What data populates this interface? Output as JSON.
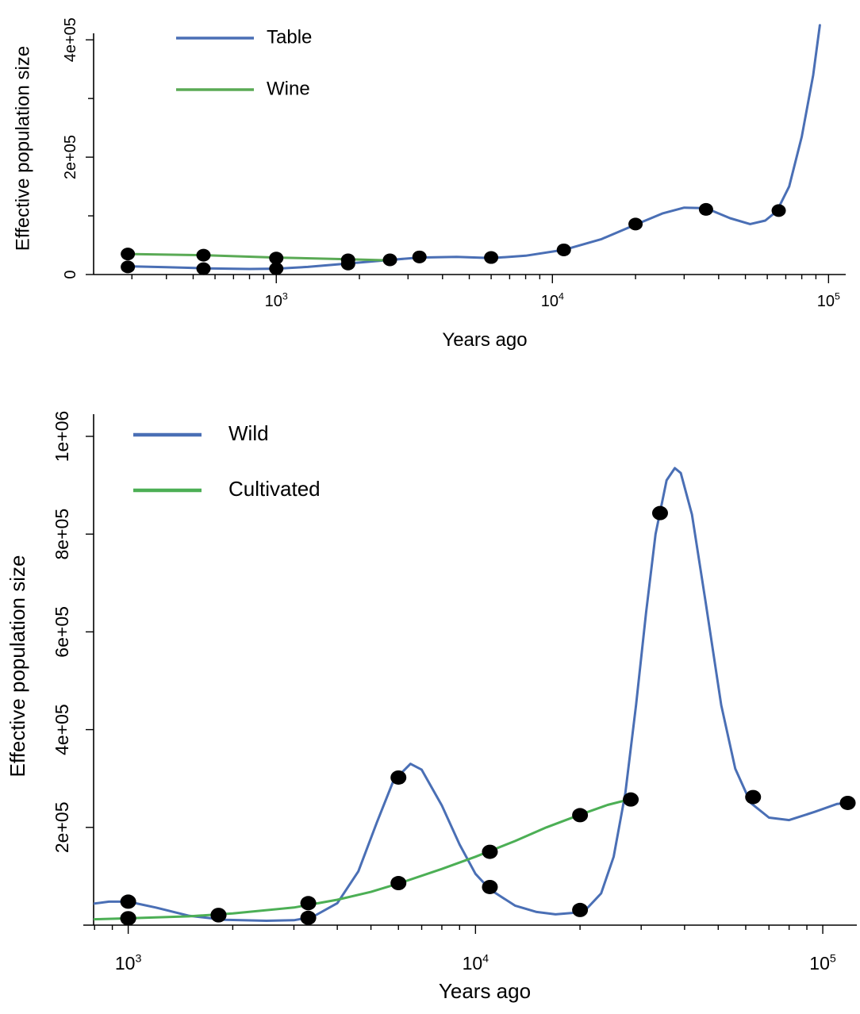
{
  "chart_data": [
    {
      "type": "line",
      "xscale": "log",
      "xlim": [
        218,
        130000
      ],
      "ylim": [
        0,
        430000
      ],
      "xlabel": "Years ago",
      "ylabel": "Effective population size",
      "y_ticks": [
        0,
        200000,
        400000
      ],
      "y_tick_labels": [
        "0",
        "2e+05",
        "4e+05"
      ],
      "y_minor_ticks": [
        100000,
        300000
      ],
      "x_ticks": [
        1000,
        10000,
        100000
      ],
      "x_tick_labels": [
        {
          "base": "10",
          "exp": "3"
        },
        {
          "base": "10",
          "exp": "4"
        },
        {
          "base": "10",
          "exp": "5"
        }
      ],
      "legend_position": "top-left",
      "series": [
        {
          "name": "Table",
          "color": "#4a6fb5",
          "curve": [
            [
              290,
              14000
            ],
            [
              400,
              12500
            ],
            [
              560,
              10500
            ],
            [
              800,
              9500
            ],
            [
              1000,
              10000
            ],
            [
              1300,
              13000
            ],
            [
              1850,
              19000
            ],
            [
              2600,
              25000
            ],
            [
              3300,
              29000
            ],
            [
              4500,
              30000
            ],
            [
              6000,
              28000
            ],
            [
              8000,
              32000
            ],
            [
              11000,
              42000
            ],
            [
              15000,
              60000
            ],
            [
              20000,
              85000
            ],
            [
              25000,
              104000
            ],
            [
              30000,
              114000
            ],
            [
              36000,
              113000
            ],
            [
              44000,
              96000
            ],
            [
              52000,
              86000
            ],
            [
              59000,
              92000
            ],
            [
              65000,
              108000
            ],
            [
              72000,
              150000
            ],
            [
              80000,
              235000
            ],
            [
              88000,
              340000
            ],
            [
              93000,
              425000
            ]
          ],
          "points": [
            [
              290,
              13000
            ],
            [
              545,
              10000
            ],
            [
              1000,
              10000
            ],
            [
              1820,
              18000
            ],
            [
              2580,
              25000
            ],
            [
              3300,
              30000
            ],
            [
              6000,
              29000
            ],
            [
              11000,
              42000
            ],
            [
              20000,
              86000
            ],
            [
              36000,
              111000
            ],
            [
              66000,
              109000
            ]
          ]
        },
        {
          "name": "Wine",
          "color": "#5aaa55",
          "curve": [
            [
              290,
              35000
            ],
            [
              545,
              33000
            ],
            [
              1000,
              29000
            ],
            [
              1820,
              26000
            ],
            [
              2600,
              24000
            ]
          ],
          "points": [
            [
              290,
              35000
            ],
            [
              545,
              33000
            ],
            [
              1000,
              28000
            ],
            [
              1820,
              25000
            ]
          ]
        }
      ]
    },
    {
      "type": "line",
      "xscale": "log",
      "xlim": [
        795,
        128000
      ],
      "ylim": [
        0,
        1060000
      ],
      "xlabel": "Years ago",
      "ylabel": "Effective population size",
      "y_ticks": [
        200000,
        400000,
        600000,
        800000,
        1000000
      ],
      "y_tick_labels": [
        "2e+05",
        "4e+05",
        "6e+05",
        "8e+05",
        "1e+06"
      ],
      "x_ticks": [
        1000,
        10000,
        100000
      ],
      "x_tick_labels": [
        {
          "base": "10",
          "exp": "3"
        },
        {
          "base": "10",
          "exp": "4"
        },
        {
          "base": "10",
          "exp": "5"
        }
      ],
      "legend_position": "top-left",
      "series": [
        {
          "name": "Wild",
          "color": "#4a6fb5",
          "curve": [
            [
              795,
              44000
            ],
            [
              880,
              48000
            ],
            [
              1000,
              48000
            ],
            [
              1200,
              36000
            ],
            [
              1500,
              19000
            ],
            [
              1900,
              11000
            ],
            [
              2500,
              9000
            ],
            [
              3000,
              10000
            ],
            [
              3400,
              17000
            ],
            [
              4000,
              45000
            ],
            [
              4600,
              110000
            ],
            [
              5200,
              210000
            ],
            [
              5800,
              295000
            ],
            [
              6500,
              330000
            ],
            [
              7000,
              318000
            ],
            [
              8000,
              245000
            ],
            [
              9000,
              165000
            ],
            [
              10000,
              105000
            ],
            [
              11000,
              73000
            ],
            [
              13000,
              40000
            ],
            [
              15000,
              27000
            ],
            [
              17000,
              22000
            ],
            [
              19000,
              25000
            ],
            [
              21000,
              35000
            ],
            [
              23000,
              65000
            ],
            [
              25000,
              140000
            ],
            [
              27000,
              270000
            ],
            [
              29000,
              450000
            ],
            [
              31000,
              640000
            ],
            [
              33000,
              800000
            ],
            [
              35500,
              910000
            ],
            [
              37500,
              935000
            ],
            [
              39000,
              925000
            ],
            [
              42000,
              840000
            ],
            [
              46000,
              660000
            ],
            [
              51000,
              450000
            ],
            [
              56000,
              320000
            ],
            [
              62000,
              250000
            ],
            [
              70000,
              220000
            ],
            [
              80000,
              215000
            ],
            [
              95000,
              232000
            ],
            [
              110000,
              248000
            ],
            [
              118000,
              250000
            ]
          ],
          "points": [
            [
              1000,
              48000
            ],
            [
              1000,
              14000
            ],
            [
              1820,
              21000
            ],
            [
              3300,
              15000
            ],
            [
              6000,
              302000
            ],
            [
              11000,
              78000
            ],
            [
              20000,
              31000
            ],
            [
              34000,
              843000
            ],
            [
              63000,
              262000
            ],
            [
              118000,
              250000
            ]
          ]
        },
        {
          "name": "Cultivated",
          "color": "#4caf55",
          "curve": [
            [
              795,
              12000
            ],
            [
              1000,
              14000
            ],
            [
              1500,
              18000
            ],
            [
              2000,
              24000
            ],
            [
              3000,
              36000
            ],
            [
              4000,
              52000
            ],
            [
              5000,
              68000
            ],
            [
              6000,
              85000
            ],
            [
              8000,
              115000
            ],
            [
              10000,
              140000
            ],
            [
              13000,
              172000
            ],
            [
              16000,
              200000
            ],
            [
              20000,
              226000
            ],
            [
              24000,
              246000
            ],
            [
              28000,
              258000
            ]
          ],
          "points": [
            [
              1000,
              14000
            ],
            [
              1820,
              20000
            ],
            [
              3300,
              45000
            ],
            [
              6000,
              86000
            ],
            [
              11000,
              150000
            ],
            [
              20000,
              225000
            ],
            [
              28000,
              257000
            ]
          ]
        }
      ]
    }
  ]
}
